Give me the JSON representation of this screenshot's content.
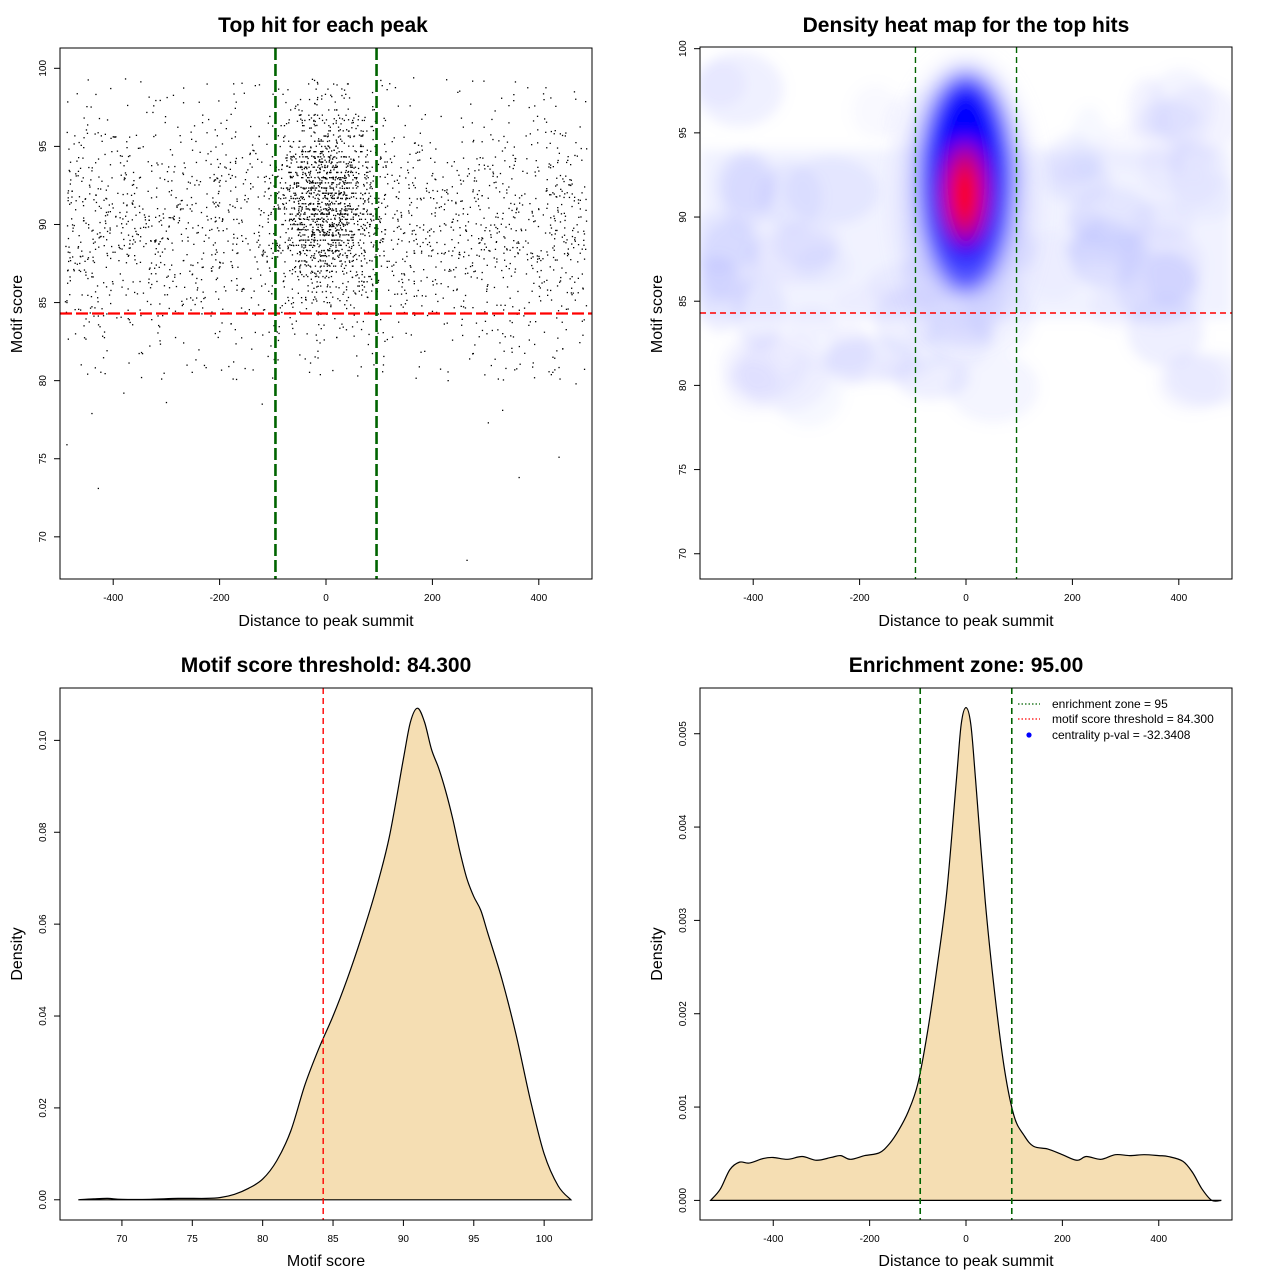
{
  "chart_data": [
    {
      "type": "scatter",
      "title": "Top hit for each peak",
      "xlabel": "Distance to peak summit",
      "ylabel": "Motif score",
      "xlim": [
        -500,
        500
      ],
      "ylim": [
        67.3,
        101.3
      ],
      "xticks": [
        -400,
        -200,
        0,
        200,
        400
      ],
      "xtick_labels": [
        "-400",
        "-200",
        "0",
        "200",
        "400"
      ],
      "yticks": [
        70,
        75,
        80,
        85,
        90,
        95,
        100
      ],
      "ytick_labels": [
        "70",
        "75",
        "80",
        "85",
        "90",
        "95",
        "100"
      ],
      "hline": 84.3,
      "vlines": [
        -95,
        95
      ],
      "hline_color": "#ff0000",
      "vline_color": "#006400",
      "point_color": "#000000",
      "outliers": [
        {
          "x": -487,
          "y": 75.9
        },
        {
          "x": -428,
          "y": 73.1
        },
        {
          "x": -440,
          "y": 77.9
        },
        {
          "x": 363,
          "y": 73.8
        },
        {
          "x": 265,
          "y": 68.5
        },
        {
          "x": 438,
          "y": 75.1
        },
        {
          "x": 305,
          "y": 77.3
        },
        {
          "x": -120,
          "y": 78.5
        },
        {
          "x": -380,
          "y": 79.2
        },
        {
          "x": 470,
          "y": 79.8
        },
        {
          "x": -300,
          "y": 78.6
        },
        {
          "x": 332,
          "y": 78.1
        }
      ]
    },
    {
      "type": "heatmap",
      "title": "Density heat map for the top hits",
      "xlabel": "Distance to peak summit",
      "ylabel": "Motif score",
      "xlim": [
        -500,
        500
      ],
      "ylim": [
        68.5,
        100.1
      ],
      "xticks": [
        -400,
        -200,
        0,
        200,
        400
      ],
      "xtick_labels": [
        "-400",
        "-200",
        "0",
        "200",
        "400"
      ],
      "yticks": [
        70,
        75,
        80,
        85,
        90,
        95,
        100
      ],
      "ytick_labels": [
        "70",
        "75",
        "80",
        "85",
        "90",
        "95",
        "100"
      ],
      "hline": 84.3,
      "vlines": [
        -95,
        95
      ],
      "hline_color": "#ff0000",
      "vline_color": "#006400",
      "colors": [
        "#ffffff",
        "#0000ff",
        "#ff0000"
      ]
    },
    {
      "type": "area",
      "title": "Motif score threshold: 84.300",
      "xlabel": "Motif score",
      "ylabel": "Density",
      "xlim": [
        65.6,
        103.4
      ],
      "ylim": [
        -0.0044,
        0.1114
      ],
      "xticks": [
        70,
        75,
        80,
        85,
        90,
        95,
        100
      ],
      "xtick_labels": [
        "70",
        "75",
        "80",
        "85",
        "90",
        "95",
        "100"
      ],
      "yticks": [
        0,
        0.02,
        0.04,
        0.06,
        0.08,
        0.1
      ],
      "ytick_labels": [
        "0.00",
        "0.02",
        "0.04",
        "0.06",
        "0.08",
        "0.10"
      ],
      "vline": 84.3,
      "vline_color": "#ff0000",
      "fill_color": "#f5deb3",
      "x": [
        66.9,
        68,
        69,
        70,
        72,
        74,
        76,
        77,
        78,
        79,
        80,
        81,
        82,
        83,
        84,
        85,
        86,
        87,
        88,
        89,
        90,
        90.5,
        91,
        91.5,
        92,
        92.5,
        93,
        93.5,
        94,
        94.5,
        95,
        95.5,
        96,
        97,
        98,
        99,
        100,
        101,
        101.9
      ],
      "y": [
        0.0,
        0.0002,
        0.0003,
        0.0001,
        0.0001,
        0.0003,
        0.0003,
        0.0005,
        0.0012,
        0.0025,
        0.0045,
        0.0085,
        0.015,
        0.025,
        0.033,
        0.04,
        0.048,
        0.057,
        0.067,
        0.079,
        0.096,
        0.104,
        0.107,
        0.104,
        0.098,
        0.094,
        0.089,
        0.083,
        0.076,
        0.07,
        0.066,
        0.063,
        0.058,
        0.048,
        0.036,
        0.022,
        0.01,
        0.003,
        0.0
      ]
    },
    {
      "type": "area",
      "title": "Enrichment zone: 95.00",
      "xlabel": "Distance to peak summit",
      "ylabel": "Density",
      "xlim": [
        -552,
        552
      ],
      "ylim": [
        -0.00021,
        0.00549
      ],
      "xticks": [
        -400,
        -200,
        0,
        200,
        400
      ],
      "xtick_labels": [
        "-400",
        "-200",
        "0",
        "200",
        "400"
      ],
      "yticks": [
        0,
        0.001,
        0.002,
        0.003,
        0.004,
        0.005
      ],
      "ytick_labels": [
        "0.000",
        "0.001",
        "0.002",
        "0.003",
        "0.004",
        "0.005"
      ],
      "vlines": [
        -95,
        95
      ],
      "vline_color": "#006400",
      "fill_color": "#f5deb3",
      "legend": [
        {
          "label": "enrichment zone = 95",
          "color": "#006400",
          "style": "dotted-line"
        },
        {
          "label": "motif score threshold = 84.300",
          "color": "#ff0000",
          "style": "dotted-line"
        },
        {
          "label": "centrality p-val = -32.3408",
          "color": "#0000ff",
          "style": "point"
        }
      ],
      "legend_position": "top-right",
      "x": [
        -530,
        -510,
        -490,
        -470,
        -450,
        -420,
        -400,
        -370,
        -340,
        -310,
        -280,
        -260,
        -240,
        -210,
        -180,
        -160,
        -140,
        -120,
        -100,
        -80,
        -60,
        -40,
        -20,
        -10,
        0,
        10,
        20,
        40,
        60,
        80,
        100,
        120,
        140,
        170,
        200,
        230,
        250,
        280,
        310,
        340,
        370,
        400,
        420,
        450,
        470,
        490,
        510,
        530
      ],
      "y": [
        0.0,
        0.00012,
        0.00033,
        0.00041,
        0.0004,
        0.00045,
        0.00046,
        0.00044,
        0.00047,
        0.00043,
        0.00046,
        0.00048,
        0.00044,
        0.00048,
        0.00051,
        0.0006,
        0.00075,
        0.00095,
        0.00125,
        0.0018,
        0.0025,
        0.0033,
        0.0045,
        0.0051,
        0.00528,
        0.0051,
        0.0045,
        0.0032,
        0.0022,
        0.0014,
        0.0009,
        0.0007,
        0.00058,
        0.00055,
        0.00049,
        0.00043,
        0.00047,
        0.00044,
        0.00049,
        0.00048,
        0.00049,
        0.00048,
        0.00047,
        0.00042,
        0.0003,
        0.00012,
        0.0,
        0.0
      ]
    }
  ]
}
